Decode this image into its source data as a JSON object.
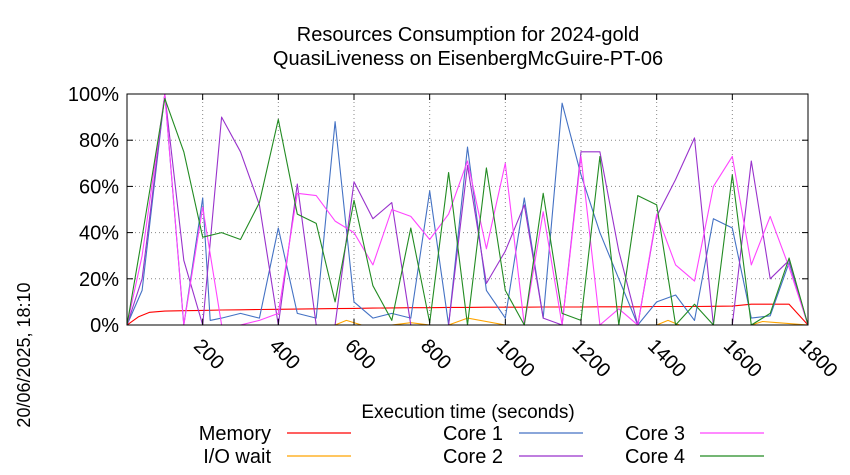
{
  "chart_data": {
    "type": "line",
    "title": [
      "Resources Consumption for 2024-gold",
      "QuasiLiveness on EisenbergMcGuire-PT-06"
    ],
    "xlabel": "Execution time (seconds)",
    "ylabel": "",
    "side_label": "20/06/2025, 18:10",
    "xlim": [
      0,
      1800
    ],
    "ylim": [
      0,
      100
    ],
    "x_ticks": [
      200,
      400,
      600,
      800,
      1000,
      1200,
      1400,
      1600,
      1800
    ],
    "y_ticks": [
      0,
      20,
      40,
      60,
      80,
      100
    ],
    "y_tick_labels": [
      "0%",
      "20%",
      "40%",
      "60%",
      "80%",
      "100%"
    ],
    "grid": true,
    "legend_position": "bottom",
    "series": [
      {
        "name": "Memory",
        "color": "#ff0000",
        "x": [
          0,
          30,
          60,
          100,
          150,
          200,
          250,
          300,
          350,
          400,
          450,
          500,
          550,
          600,
          650,
          700,
          750,
          800,
          850,
          900,
          950,
          1000,
          1050,
          1100,
          1150,
          1200,
          1250,
          1300,
          1350,
          1400,
          1450,
          1500,
          1550,
          1600,
          1650,
          1700,
          1750,
          1800
        ],
        "y": [
          0,
          3.5,
          5.5,
          6,
          6.2,
          6.3,
          6.5,
          6.6,
          6.7,
          6.8,
          6.9,
          7,
          7.1,
          7.2,
          7.3,
          7.4,
          7.5,
          7.5,
          7.6,
          7.6,
          7.7,
          7.7,
          7.7,
          7.8,
          7.8,
          7.8,
          7.9,
          7.9,
          7.9,
          8,
          8,
          8,
          8.1,
          8.2,
          9,
          9,
          9,
          0
        ]
      },
      {
        "name": "I/O wait",
        "color": "#ffa500",
        "x": [
          0,
          550,
          580,
          620,
          700,
          750,
          800,
          850,
          900,
          1000,
          1400,
          1430,
          1460,
          1650,
          1680,
          1720,
          1800
        ],
        "y": [
          0,
          0,
          2,
          0,
          0,
          1,
          0,
          0,
          3,
          0,
          0,
          2,
          0,
          0,
          1.5,
          1,
          0
        ]
      },
      {
        "name": "Core 1",
        "color": "#4472c4",
        "x": [
          0,
          40,
          100,
          150,
          200,
          220,
          250,
          300,
          350,
          400,
          450,
          500,
          550,
          600,
          650,
          700,
          750,
          800,
          850,
          900,
          950,
          1000,
          1050,
          1100,
          1150,
          1200,
          1250,
          1300,
          1350,
          1400,
          1450,
          1500,
          1550,
          1600,
          1650,
          1700,
          1750,
          1800
        ],
        "y": [
          0,
          15,
          100,
          0,
          55,
          2,
          3,
          5,
          3,
          42,
          5,
          3,
          88,
          10,
          3,
          5,
          3,
          58,
          0,
          77,
          15,
          3,
          55,
          3,
          96,
          65,
          40,
          20,
          0,
          10,
          13,
          2,
          46,
          42,
          3,
          4,
          27,
          0
        ]
      },
      {
        "name": "Core 2",
        "color": "#9932cc",
        "x": [
          0,
          40,
          100,
          150,
          200,
          250,
          300,
          350,
          400,
          450,
          500,
          550,
          600,
          650,
          700,
          750,
          800,
          850,
          900,
          950,
          1000,
          1050,
          1100,
          1150,
          1200,
          1250,
          1300,
          1350,
          1400,
          1450,
          1500,
          1550,
          1600,
          1650,
          1700,
          1750,
          1800
        ],
        "y": [
          0,
          20,
          100,
          28,
          0,
          90,
          75,
          52,
          0,
          61,
          0,
          0,
          62,
          46,
          53,
          0,
          0,
          0,
          69,
          18,
          32,
          52,
          3,
          0,
          75,
          75,
          32,
          0,
          47,
          63,
          81,
          0,
          0,
          71,
          20,
          28,
          0
        ]
      },
      {
        "name": "Core 3",
        "color": "#ff44ff",
        "x": [
          0,
          40,
          100,
          150,
          200,
          250,
          300,
          350,
          400,
          450,
          500,
          550,
          600,
          650,
          700,
          750,
          800,
          850,
          900,
          950,
          1000,
          1050,
          1100,
          1150,
          1200,
          1250,
          1300,
          1350,
          1400,
          1450,
          1500,
          1550,
          1600,
          1650,
          1700,
          1750,
          1800
        ],
        "y": [
          0,
          30,
          100,
          0,
          51,
          0,
          0,
          2,
          5,
          57,
          56,
          45,
          40,
          26,
          50,
          47,
          37,
          48,
          71,
          33,
          70,
          0,
          49,
          0,
          73,
          0,
          7,
          0,
          48,
          26,
          19,
          60,
          73,
          26,
          47,
          25,
          0
        ]
      },
      {
        "name": "Core 4",
        "color": "#228b22",
        "x": [
          0,
          40,
          100,
          150,
          200,
          250,
          300,
          350,
          400,
          450,
          500,
          550,
          600,
          650,
          700,
          750,
          800,
          850,
          900,
          950,
          1000,
          1050,
          1100,
          1150,
          1200,
          1250,
          1300,
          1350,
          1400,
          1450,
          1500,
          1550,
          1600,
          1650,
          1700,
          1750,
          1800
        ],
        "y": [
          0,
          38,
          98,
          75,
          38,
          40,
          37,
          53,
          89,
          48,
          44,
          10,
          54,
          17,
          2,
          42,
          1,
          66,
          0,
          68,
          15,
          0,
          57,
          5,
          2,
          73,
          0,
          56,
          52,
          0,
          9,
          0,
          65,
          0,
          5,
          29,
          0
        ]
      }
    ]
  }
}
